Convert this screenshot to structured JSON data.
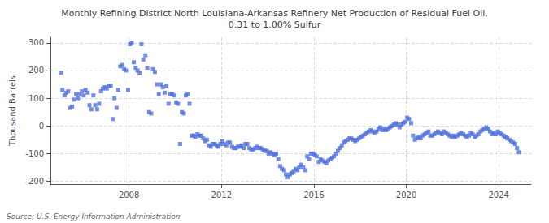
{
  "chart_data": {
    "type": "scatter",
    "title": "Monthly Refining District North Louisiana-Arkansas Refinery Net Production of Residual Fuel Oil,\n0.31 to 1.00% Sulfur",
    "ylabel": "Thousand Barrels",
    "annotation": "Source: U.S. Energy Information Administration",
    "marker": "square",
    "grid": true,
    "xlim": [
      2004.6,
      2025.4
    ],
    "xticks": [
      2008,
      2012,
      2016,
      2020,
      2024
    ],
    "ylim": [
      -210,
      320
    ],
    "yticks": [
      -200,
      -100,
      0,
      100,
      200,
      300
    ],
    "x": [
      2005.04,
      2005.12,
      2005.21,
      2005.29,
      2005.37,
      2005.46,
      2005.54,
      2005.62,
      2005.71,
      2005.79,
      2005.87,
      2005.96,
      2006.04,
      2006.12,
      2006.21,
      2006.29,
      2006.37,
      2006.46,
      2006.54,
      2006.62,
      2006.71,
      2006.79,
      2006.87,
      2006.96,
      2007.04,
      2007.12,
      2007.21,
      2007.29,
      2007.37,
      2007.46,
      2007.54,
      2007.62,
      2007.71,
      2007.79,
      2007.87,
      2007.96,
      2008.04,
      2008.12,
      2008.21,
      2008.29,
      2008.37,
      2008.46,
      2008.54,
      2008.62,
      2008.71,
      2008.79,
      2008.87,
      2008.96,
      2009.04,
      2009.12,
      2009.21,
      2009.29,
      2009.37,
      2009.46,
      2009.54,
      2009.62,
      2009.71,
      2009.79,
      2009.87,
      2009.96,
      2010.04,
      2010.12,
      2010.21,
      2010.29,
      2010.37,
      2010.46,
      2010.54,
      2010.62,
      2010.71,
      2010.79,
      2010.87,
      2010.96,
      2011.04,
      2011.12,
      2011.21,
      2011.29,
      2011.37,
      2011.46,
      2011.54,
      2011.62,
      2011.71,
      2011.79,
      2011.87,
      2011.96,
      2012.04,
      2012.12,
      2012.21,
      2012.29,
      2012.37,
      2012.46,
      2012.54,
      2012.62,
      2012.71,
      2012.79,
      2012.87,
      2012.96,
      2013.04,
      2013.12,
      2013.21,
      2013.29,
      2013.37,
      2013.46,
      2013.54,
      2013.62,
      2013.71,
      2013.79,
      2013.87,
      2013.96,
      2014.04,
      2014.12,
      2014.21,
      2014.29,
      2014.37,
      2014.46,
      2014.54,
      2014.62,
      2014.71,
      2014.79,
      2014.87,
      2014.96,
      2015.04,
      2015.12,
      2015.21,
      2015.29,
      2015.37,
      2015.46,
      2015.54,
      2015.62,
      2015.71,
      2015.79,
      2015.87,
      2015.96,
      2016.04,
      2016.12,
      2016.21,
      2016.29,
      2016.37,
      2016.46,
      2016.54,
      2016.62,
      2016.71,
      2016.79,
      2016.87,
      2016.96,
      2017.04,
      2017.12,
      2017.21,
      2017.29,
      2017.37,
      2017.46,
      2017.54,
      2017.62,
      2017.71,
      2017.79,
      2017.87,
      2017.96,
      2018.04,
      2018.12,
      2018.21,
      2018.29,
      2018.37,
      2018.46,
      2018.54,
      2018.62,
      2018.71,
      2018.79,
      2018.87,
      2018.96,
      2019.04,
      2019.12,
      2019.21,
      2019.29,
      2019.37,
      2019.46,
      2019.54,
      2019.62,
      2019.71,
      2019.79,
      2019.87,
      2019.96,
      2020.04,
      2020.12,
      2020.21,
      2020.29,
      2020.37,
      2020.46,
      2020.54,
      2020.62,
      2020.71,
      2020.79,
      2020.87,
      2020.96,
      2021.04,
      2021.12,
      2021.21,
      2021.29,
      2021.37,
      2021.46,
      2021.54,
      2021.62,
      2021.71,
      2021.79,
      2021.87,
      2021.96,
      2022.04,
      2022.12,
      2022.21,
      2022.29,
      2022.37,
      2022.46,
      2022.54,
      2022.62,
      2022.71,
      2022.79,
      2022.87,
      2022.96,
      2023.04,
      2023.12,
      2023.21,
      2023.29,
      2023.37,
      2023.46,
      2023.54,
      2023.62,
      2023.71,
      2023.79,
      2023.87,
      2023.96,
      2024.04,
      2024.12,
      2024.21,
      2024.29,
      2024.37,
      2024.46,
      2024.54,
      2024.62,
      2024.71,
      2024.79,
      2024.87
    ],
    "values": [
      192,
      130,
      110,
      120,
      125,
      65,
      70,
      95,
      115,
      100,
      115,
      125,
      110,
      130,
      120,
      75,
      60,
      110,
      75,
      60,
      80,
      125,
      135,
      140,
      135,
      145,
      145,
      25,
      100,
      65,
      130,
      215,
      220,
      205,
      200,
      130,
      295,
      300,
      230,
      210,
      200,
      190,
      295,
      240,
      255,
      210,
      50,
      45,
      205,
      195,
      150,
      115,
      150,
      140,
      120,
      145,
      80,
      115,
      115,
      110,
      85,
      80,
      -65,
      50,
      45,
      110,
      115,
      80,
      -35,
      -35,
      -40,
      -30,
      -35,
      -35,
      -45,
      -55,
      -50,
      -70,
      -75,
      -65,
      -65,
      -70,
      -75,
      -65,
      -55,
      -65,
      -70,
      -60,
      -60,
      -75,
      -80,
      -80,
      -75,
      -75,
      -70,
      -80,
      -65,
      -65,
      -80,
      -85,
      -85,
      -80,
      -75,
      -80,
      -80,
      -85,
      -90,
      -90,
      -100,
      -95,
      -100,
      -105,
      -100,
      -120,
      -145,
      -155,
      -160,
      -175,
      -185,
      -175,
      -170,
      -165,
      -155,
      -160,
      -150,
      -140,
      -150,
      -160,
      -110,
      -120,
      -100,
      -100,
      -105,
      -110,
      -130,
      -120,
      -125,
      -130,
      -135,
      -125,
      -120,
      -115,
      -110,
      -100,
      -90,
      -80,
      -70,
      -60,
      -55,
      -50,
      -45,
      -45,
      -50,
      -55,
      -50,
      -45,
      -40,
      -35,
      -30,
      -25,
      -20,
      -15,
      -20,
      -25,
      -20,
      -10,
      -5,
      -15,
      -10,
      -15,
      -10,
      -5,
      0,
      5,
      10,
      5,
      -5,
      5,
      10,
      15,
      30,
      25,
      10,
      -35,
      -50,
      -45,
      -40,
      -45,
      -35,
      -30,
      -25,
      -20,
      -35,
      -35,
      -30,
      -25,
      -20,
      -25,
      -30,
      -20,
      -25,
      -30,
      -35,
      -40,
      -35,
      -40,
      -35,
      -30,
      -25,
      -30,
      -35,
      -40,
      -35,
      -25,
      -30,
      -40,
      -35,
      -30,
      -20,
      -15,
      -10,
      -5,
      -10,
      -20,
      -30,
      -25,
      -30,
      -20,
      -25,
      -30,
      -35,
      -40,
      -45,
      -50,
      -55,
      -60,
      -65,
      -80,
      -95
    ]
  }
}
